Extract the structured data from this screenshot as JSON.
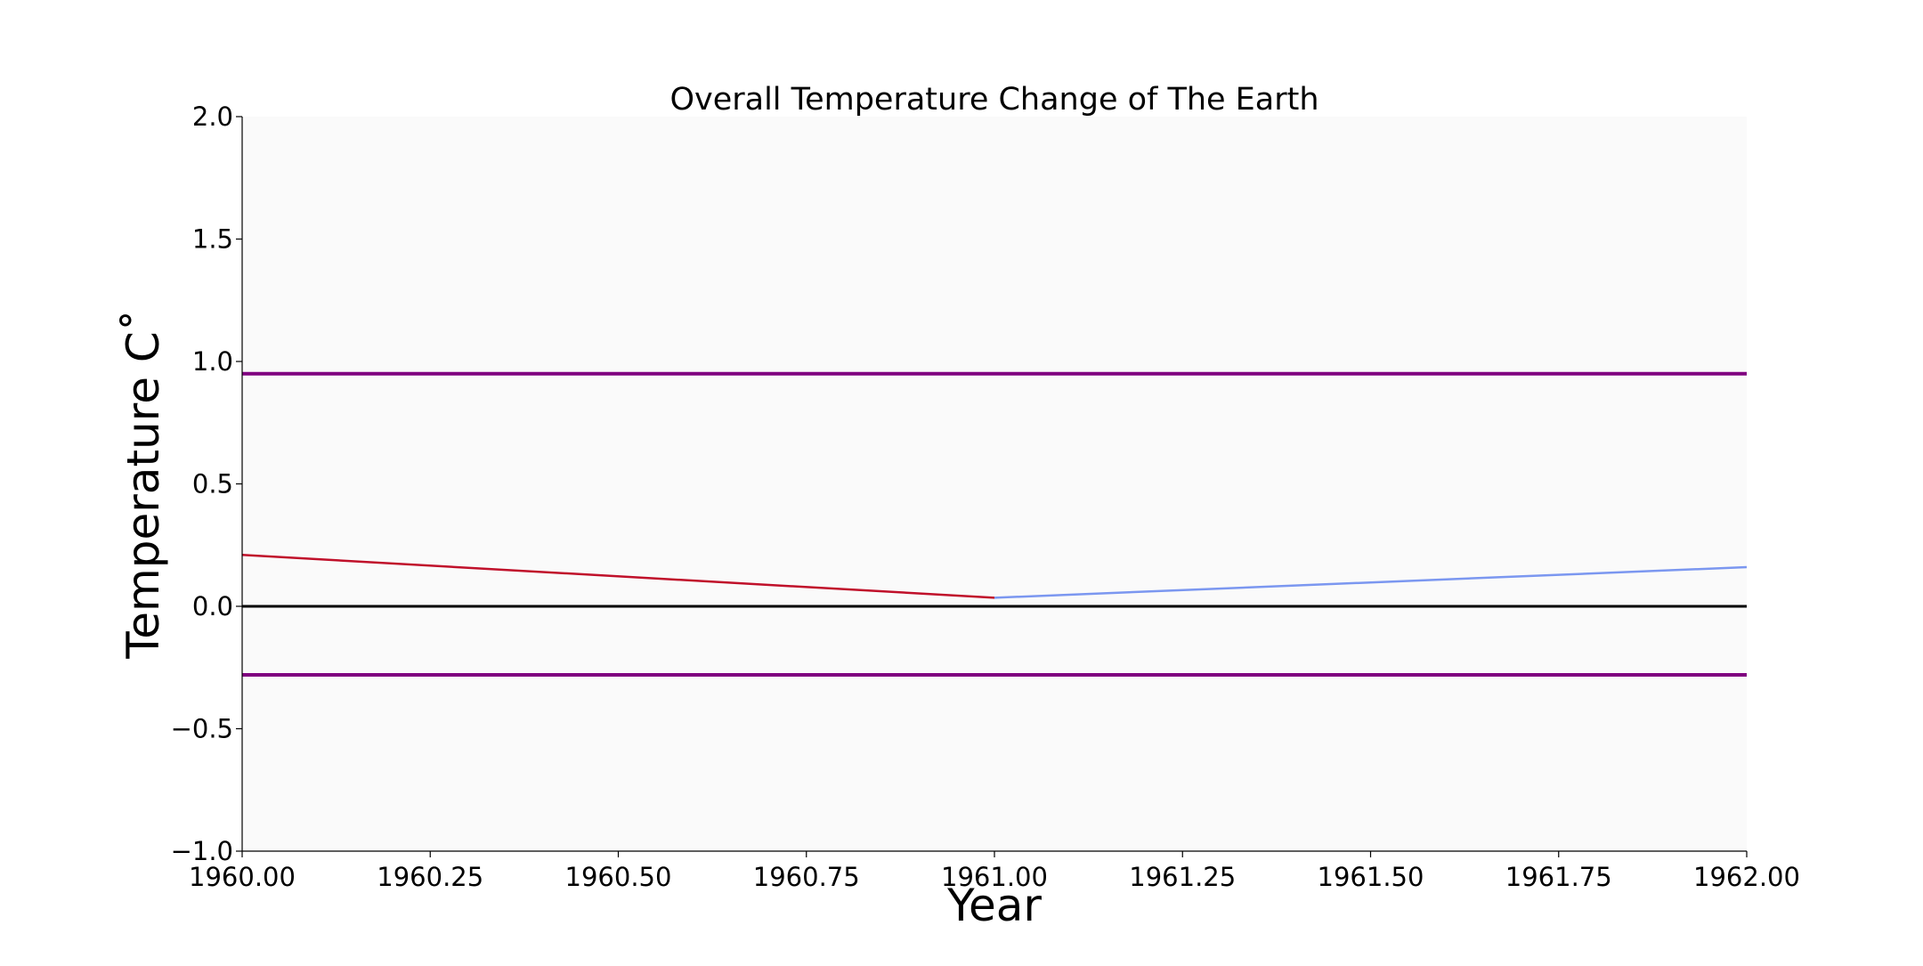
{
  "chart_data": {
    "type": "line",
    "title": "Overall Temperature Change of The Earth",
    "xlabel": "Year",
    "ylabel": "Temperature C˚",
    "xlim": [
      1960.0,
      1962.0
    ],
    "ylim": [
      -1.0,
      2.0
    ],
    "x_ticks": [
      1960.0,
      1960.25,
      1960.5,
      1960.75,
      1961.0,
      1961.25,
      1961.5,
      1961.75,
      1962.0
    ],
    "x_tick_labels": [
      "1960.00",
      "1960.25",
      "1960.50",
      "1960.75",
      "1961.00",
      "1961.25",
      "1961.50",
      "1961.75",
      "1962.00"
    ],
    "y_ticks": [
      -1.0,
      -0.5,
      0.0,
      0.5,
      1.0,
      1.5,
      2.0
    ],
    "y_tick_labels": [
      "−1.0",
      "−0.5",
      "0.0",
      "0.5",
      "1.0",
      "1.5",
      "2.0"
    ],
    "grid": false,
    "plot_background": "#fafafa",
    "series": [
      {
        "x": [
          1960.0,
          1961.0
        ],
        "y": [
          0.21,
          0.035
        ],
        "color": "#c0102a"
      },
      {
        "x": [
          1961.0,
          1962.0
        ],
        "y": [
          0.035,
          0.16
        ],
        "color": "#7b97f0"
      }
    ],
    "reference_lines": [
      {
        "y": 0.95,
        "color": "#800080"
      },
      {
        "y": 0.0,
        "color": "#000000"
      },
      {
        "y": -0.28,
        "color": "#800080"
      }
    ]
  }
}
